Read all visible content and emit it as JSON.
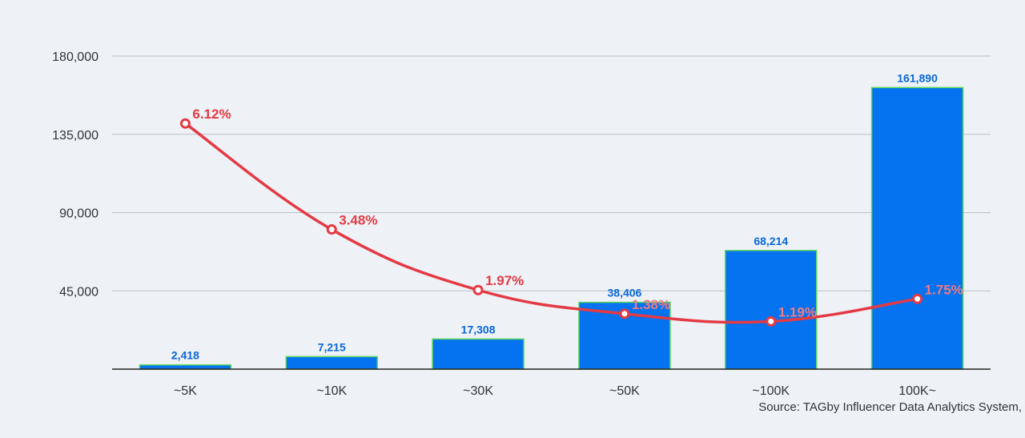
{
  "chart_data": {
    "type": "bar",
    "categories": [
      "~5K",
      "~10K",
      "~30K",
      "~50K",
      "~100K",
      "100K~"
    ],
    "series": [
      {
        "type": "bar",
        "values": [
          2418,
          7215,
          17308,
          38406,
          68214,
          161890
        ]
      },
      {
        "type": "line",
        "values": [
          6.12,
          3.48,
          1.97,
          1.38,
          1.19,
          1.75
        ],
        "unit": "%"
      }
    ],
    "bar_labels": [
      "2,418",
      "7,215",
      "17,308",
      "38,406",
      "68,214",
      "161,890"
    ],
    "line_labels": [
      "6.12%",
      "3.48%",
      "1.97%",
      "1.38%",
      "1.19%",
      "1.75%"
    ],
    "yaxis": {
      "ticks": [
        45000,
        90000,
        135000,
        180000
      ],
      "tick_labels": [
        "45,000",
        "90,000",
        "135,000",
        "180,000"
      ],
      "ylim": [
        0,
        180000
      ]
    },
    "line_range": [
      0,
      7.8
    ],
    "grid": true,
    "colors": {
      "bar": "#0572f0",
      "bar_edge": "#5cd65c",
      "line": "#e43a44"
    }
  },
  "source": "Source: TAGby Influencer Data Analytics System,"
}
